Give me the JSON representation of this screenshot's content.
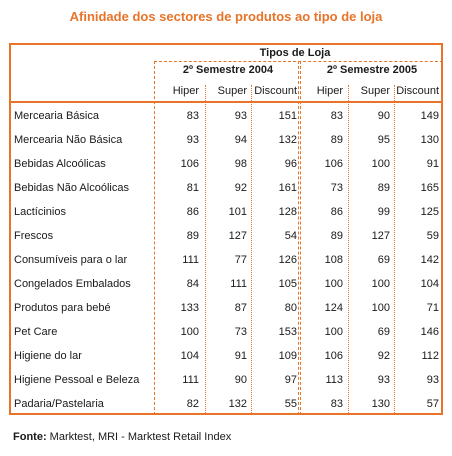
{
  "title": "Afinidade dos sectores de produtos ao tipo de loja",
  "header": {
    "group_label": "Tipos de Loja",
    "periods": [
      "2º Semestre 2004",
      "2º Semestre 2005"
    ],
    "columns": [
      "Hiper",
      "Super",
      "Discount"
    ]
  },
  "rows": [
    {
      "sector": "Mercearia Básica",
      "v2004": [
        83,
        93,
        151
      ],
      "v2005": [
        83,
        90,
        149
      ]
    },
    {
      "sector": "Mercearia Não Básica",
      "v2004": [
        93,
        94,
        132
      ],
      "v2005": [
        89,
        95,
        130
      ]
    },
    {
      "sector": "Bebidas Alcoólicas",
      "v2004": [
        106,
        98,
        96
      ],
      "v2005": [
        106,
        100,
        91
      ]
    },
    {
      "sector": "Bebidas Não Alcoólicas",
      "v2004": [
        81,
        92,
        161
      ],
      "v2005": [
        73,
        89,
        165
      ]
    },
    {
      "sector": "Lactícinios",
      "v2004": [
        86,
        101,
        128
      ],
      "v2005": [
        86,
        99,
        125
      ]
    },
    {
      "sector": "Frescos",
      "v2004": [
        89,
        127,
        54
      ],
      "v2005": [
        89,
        127,
        59
      ]
    },
    {
      "sector": "Consumíveis para o lar",
      "v2004": [
        111,
        77,
        126
      ],
      "v2005": [
        108,
        69,
        142
      ]
    },
    {
      "sector": "Congelados Embalados",
      "v2004": [
        84,
        111,
        105
      ],
      "v2005": [
        100,
        100,
        104
      ]
    },
    {
      "sector": "Produtos para bebé",
      "v2004": [
        133,
        87,
        80
      ],
      "v2005": [
        124,
        100,
        71
      ]
    },
    {
      "sector": "Pet Care",
      "v2004": [
        100,
        73,
        153
      ],
      "v2005": [
        100,
        69,
        146
      ]
    },
    {
      "sector": "Higiene do lar",
      "v2004": [
        104,
        91,
        109
      ],
      "v2005": [
        106,
        92,
        112
      ]
    },
    {
      "sector": "Higiene Pessoal e Beleza",
      "v2004": [
        111,
        90,
        97
      ],
      "v2005": [
        113,
        93,
        93
      ]
    },
    {
      "sector": "Padaria/Pastelaria",
      "v2004": [
        82,
        132,
        55
      ],
      "v2005": [
        83,
        130,
        57
      ]
    }
  ],
  "footer": {
    "source_label": "Fonte:",
    "source_text": " Marktest, MRI - Marktest Retail Index"
  },
  "colors": {
    "accent": "#e8742a",
    "text": "#1a1a1a",
    "background": "#ffffff"
  }
}
